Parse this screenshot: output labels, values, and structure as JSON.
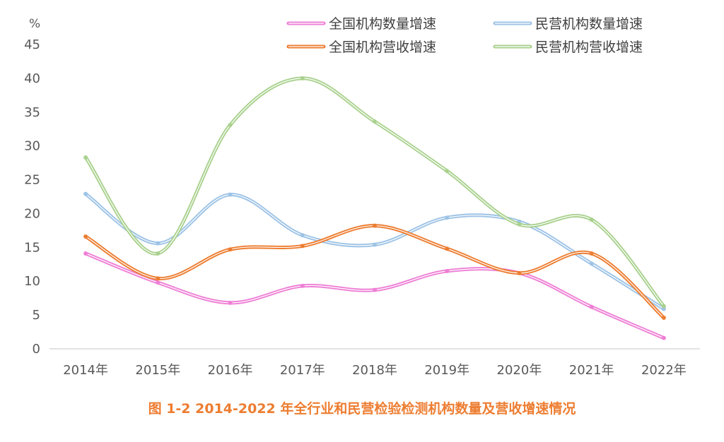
{
  "chart_data": {
    "type": "line",
    "title": "",
    "ylabel": "%",
    "xlabel": "",
    "ylim": [
      0,
      45
    ],
    "ytick_step": 5,
    "yticks": [
      "0",
      "5",
      "10",
      "15",
      "20",
      "25",
      "30",
      "35",
      "40",
      "45"
    ],
    "categories": [
      "2014年",
      "2015年",
      "2016年",
      "2017年",
      "2018年",
      "2019年",
      "2020年",
      "2021年",
      "2022年"
    ],
    "grid": false,
    "legend_position": "top-right",
    "series": [
      {
        "name": "全国机构数量增速",
        "color": "#ee7fd5",
        "values": [
          14.1,
          9.8,
          6.8,
          9.3,
          8.7,
          11.5,
          11.2,
          6.2,
          1.6
        ]
      },
      {
        "name": "全国机构营收增速",
        "color": "#ed7d31",
        "values": [
          16.6,
          10.4,
          14.7,
          15.2,
          18.2,
          14.8,
          11.2,
          14.1,
          4.6
        ]
      },
      {
        "name": "民营机构数量增速",
        "color": "#9dc3e6",
        "values": [
          22.9,
          15.6,
          22.8,
          16.8,
          15.4,
          19.4,
          18.8,
          12.6,
          5.9
        ]
      },
      {
        "name": "民营机构营收增速",
        "color": "#a9d18e",
        "values": [
          28.3,
          14.1,
          33.1,
          40.0,
          33.6,
          26.3,
          18.4,
          19.1,
          6.3
        ]
      }
    ]
  },
  "caption": "图 1-2    2014-2022 年全行业和民营检验检测机构数量及营收增速情况"
}
